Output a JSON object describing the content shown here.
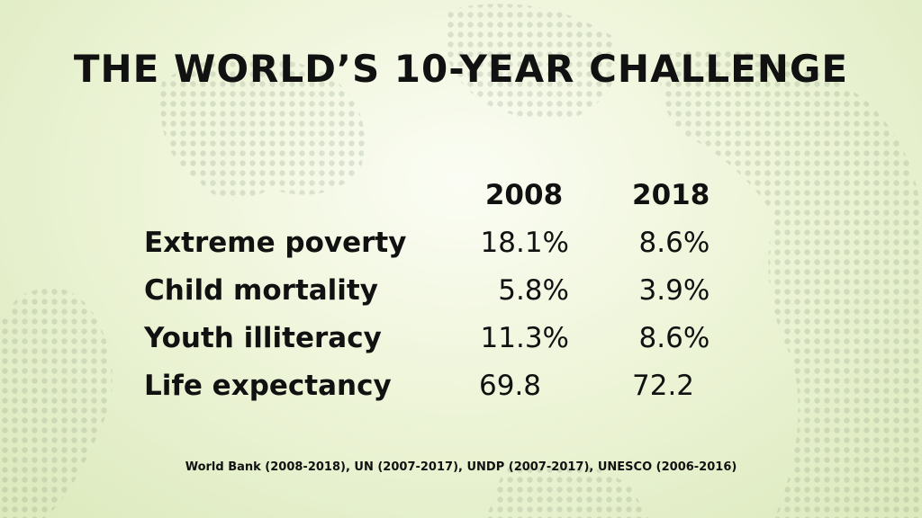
{
  "slide": {
    "title": "THE WORLD’S 10-YEAR CHALLENGE",
    "years": [
      "2008",
      "2018"
    ],
    "rows": [
      {
        "label": "Extreme poverty",
        "v2008": "18.1%",
        "v2018": "8.6%"
      },
      {
        "label": "Child mortality",
        "v2008": "5.8%",
        "v2018": "3.9%"
      },
      {
        "label": "Youth illiteracy",
        "v2008": "11.3%",
        "v2018": "8.6%"
      },
      {
        "label": "Life expectancy",
        "v2008": "69.8",
        "v2018": "72.2"
      }
    ],
    "source": "World Bank (2008-2018), UN (2007-2017), UNDP (2007-2017), UNESCO (2006-2016)"
  },
  "colors": {
    "text": "#111111",
    "background": "#eef5d9",
    "map_dots": "#8a9a80"
  }
}
